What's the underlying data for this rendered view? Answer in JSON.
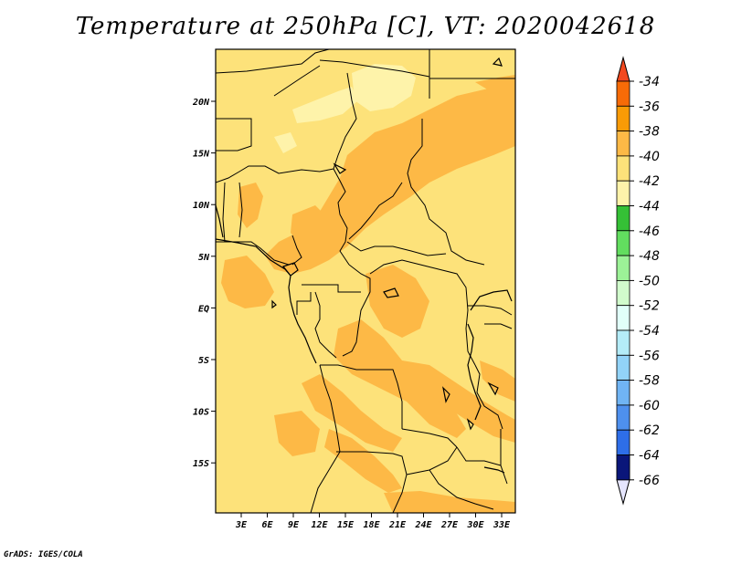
{
  "title": "Temperature at 250hPa [C], VT: 2020042618",
  "credit": "GrADS: IGES/COLA",
  "map": {
    "lon_labels": [
      "3E",
      "6E",
      "9E",
      "12E",
      "15E",
      "18E",
      "21E",
      "24E",
      "27E",
      "30E",
      "33E"
    ],
    "lat_labels": [
      "20N",
      "15N",
      "10N",
      "5N",
      "EQ",
      "5S",
      "10S",
      "15S"
    ],
    "colors": {
      "l38": "#fdb946",
      "l40": "#fde27a",
      "l42": "#fef3aa",
      "ocean": "#fde27a",
      "border": "#000000"
    }
  },
  "colorbar": {
    "labels": [
      "-34",
      "-36",
      "-38",
      "-40",
      "-42",
      "-44",
      "-46",
      "-48",
      "-50",
      "-52",
      "-54",
      "-56",
      "-58",
      "-60",
      "-62",
      "-64",
      "-66"
    ],
    "top_color": "#f3491f",
    "bottom_color": "#e6e6ff",
    "colors": [
      "#f76b07",
      "#f99b06",
      "#fdb946",
      "#fde27a",
      "#fef3aa",
      "#35c036",
      "#62dd5f",
      "#9cf297",
      "#d1fbcc",
      "#e1fff9",
      "#b4ecf8",
      "#92d3f8",
      "#70b4f4",
      "#4e90ee",
      "#2e6ee8",
      "#1a4fd6",
      "#0a167a"
    ]
  }
}
